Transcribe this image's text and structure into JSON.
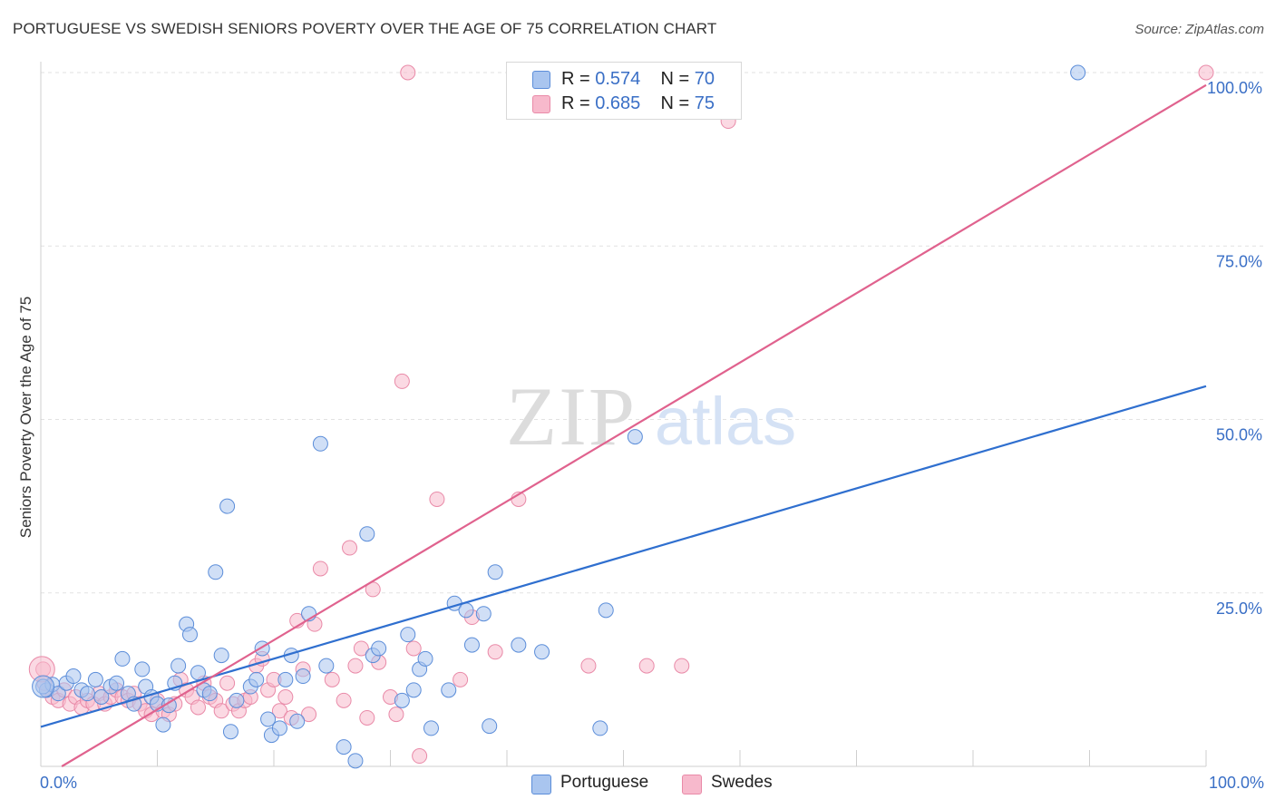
{
  "title": "PORTUGUESE VS SWEDISH SENIORS POVERTY OVER THE AGE OF 75 CORRELATION CHART",
  "source": "Source: ZipAtlas.com",
  "watermark": {
    "zip": "ZIP",
    "atlas": "atlas"
  },
  "colors": {
    "portuguese_fill": "#a9c5ef",
    "portuguese_stroke": "#5b8dd9",
    "portuguese_line": "#2f6fcf",
    "swedes_fill": "#f7b9cc",
    "swedes_stroke": "#e98aa8",
    "swedes_line": "#e0628e",
    "tick_label": "#3a6fc6",
    "grid": "#e2e2e2"
  },
  "legend": {
    "rows": [
      {
        "r_label": "R =",
        "r_value": "0.574",
        "n_label": "N =",
        "n_value": "70"
      },
      {
        "r_label": "R =",
        "r_value": "0.685",
        "n_label": "N =",
        "n_value": "75"
      }
    ]
  },
  "bottom_legend": [
    "Portuguese",
    "Swedes"
  ],
  "chart_data": {
    "type": "scatter",
    "title": "PORTUGUESE VS SWEDISH SENIORS POVERTY OVER THE AGE OF 75 CORRELATION CHART",
    "xlabel": "",
    "ylabel": "Seniors Poverty Over the Age of 75",
    "xlim": [
      0,
      100
    ],
    "ylim": [
      0,
      100
    ],
    "x_tick_labels": [
      "0.0%",
      "100.0%"
    ],
    "y_tick_labels": [
      {
        "value": 25,
        "label": "25.0%"
      },
      {
        "value": 50,
        "label": "50.0%"
      },
      {
        "value": 75,
        "label": "75.0%"
      },
      {
        "value": 100,
        "label": "100.0%"
      }
    ],
    "grid": true,
    "legend_position": "top-center",
    "series": [
      {
        "name": "Portuguese",
        "R": 0.574,
        "N": 70,
        "trend": {
          "x": [
            0,
            100
          ],
          "y": [
            5.7,
            54.8
          ]
        },
        "points": [
          [
            0.5,
            11
          ],
          [
            1,
            11.8
          ],
          [
            1.5,
            10.5
          ],
          [
            2.2,
            12
          ],
          [
            2.8,
            13
          ],
          [
            3.5,
            11
          ],
          [
            4,
            10.5
          ],
          [
            4.7,
            12.5
          ],
          [
            5.2,
            10
          ],
          [
            6,
            11.5
          ],
          [
            6.5,
            12
          ],
          [
            7,
            15.5
          ],
          [
            7.5,
            10.5
          ],
          [
            8,
            9
          ],
          [
            8.7,
            14
          ],
          [
            9,
            11.5
          ],
          [
            9.5,
            10
          ],
          [
            10,
            9
          ],
          [
            10.5,
            6
          ],
          [
            11,
            8.8
          ],
          [
            11.5,
            12
          ],
          [
            11.8,
            14.5
          ],
          [
            12.5,
            20.5
          ],
          [
            12.8,
            19
          ],
          [
            13.5,
            13.5
          ],
          [
            14,
            11
          ],
          [
            14.5,
            10.5
          ],
          [
            15,
            28
          ],
          [
            15.5,
            16
          ],
          [
            16,
            37.5
          ],
          [
            16.3,
            5
          ],
          [
            16.8,
            9.5
          ],
          [
            18,
            11.5
          ],
          [
            18.5,
            12.5
          ],
          [
            19,
            17
          ],
          [
            19.5,
            6.8
          ],
          [
            19.8,
            4.5
          ],
          [
            20.5,
            5.5
          ],
          [
            21,
            12.5
          ],
          [
            21.5,
            16
          ],
          [
            22,
            6.5
          ],
          [
            22.5,
            13
          ],
          [
            23,
            22
          ],
          [
            24,
            46.5
          ],
          [
            24.5,
            14.5
          ],
          [
            26,
            2.8
          ],
          [
            27,
            0.8
          ],
          [
            28,
            33.5
          ],
          [
            28.5,
            16
          ],
          [
            29,
            17
          ],
          [
            31,
            9.5
          ],
          [
            31.5,
            19
          ],
          [
            32,
            11
          ],
          [
            32.5,
            14
          ],
          [
            33,
            15.5
          ],
          [
            33.5,
            5.5
          ],
          [
            35,
            11
          ],
          [
            35.5,
            23.5
          ],
          [
            36.5,
            22.5
          ],
          [
            37,
            17.5
          ],
          [
            38,
            22
          ],
          [
            38.5,
            5.8
          ],
          [
            39,
            28
          ],
          [
            41,
            17.5
          ],
          [
            43,
            16.5
          ],
          [
            48,
            5.5
          ],
          [
            48.5,
            22.5
          ],
          [
            51,
            47.5
          ],
          [
            89,
            100
          ],
          [
            0.2,
            11.5
          ]
        ]
      },
      {
        "name": "Swedes",
        "R": 0.685,
        "N": 75,
        "trend": {
          "x": [
            0,
            100
          ],
          "y": [
            -1.8,
            98.2
          ]
        },
        "points": [
          [
            0.5,
            11
          ],
          [
            1,
            10
          ],
          [
            1.5,
            9.5
          ],
          [
            2,
            11
          ],
          [
            2.5,
            9
          ],
          [
            3,
            10
          ],
          [
            3.5,
            8.5
          ],
          [
            4,
            9.5
          ],
          [
            4.5,
            9
          ],
          [
            5,
            10.5
          ],
          [
            5.5,
            9
          ],
          [
            6,
            10
          ],
          [
            6.5,
            11
          ],
          [
            7,
            10
          ],
          [
            7.5,
            9.5
          ],
          [
            8,
            10.5
          ],
          [
            8.5,
            9
          ],
          [
            9,
            8
          ],
          [
            9.5,
            7.5
          ],
          [
            10,
            9.5
          ],
          [
            10.5,
            8
          ],
          [
            11,
            7.5
          ],
          [
            11.5,
            9
          ],
          [
            12,
            12.5
          ],
          [
            12.5,
            11
          ],
          [
            13,
            10
          ],
          [
            13.5,
            8.5
          ],
          [
            14,
            12
          ],
          [
            14.5,
            10
          ],
          [
            15,
            9.5
          ],
          [
            15.5,
            8
          ],
          [
            16,
            12
          ],
          [
            16.5,
            9
          ],
          [
            17,
            8
          ],
          [
            17.5,
            9.5
          ],
          [
            18,
            10
          ],
          [
            18.5,
            14.5
          ],
          [
            19,
            15.5
          ],
          [
            19.5,
            11
          ],
          [
            20,
            12.5
          ],
          [
            20.5,
            8
          ],
          [
            21,
            10
          ],
          [
            21.5,
            7
          ],
          [
            22,
            21
          ],
          [
            22.5,
            14
          ],
          [
            23,
            7.5
          ],
          [
            23.5,
            20.5
          ],
          [
            24,
            28.5
          ],
          [
            25,
            12.5
          ],
          [
            26,
            9.5
          ],
          [
            26.5,
            31.5
          ],
          [
            27,
            14.5
          ],
          [
            27.5,
            17
          ],
          [
            28,
            7
          ],
          [
            28.5,
            25.5
          ],
          [
            29,
            15
          ],
          [
            30,
            10
          ],
          [
            30.5,
            7.5
          ],
          [
            31,
            55.5
          ],
          [
            32,
            17
          ],
          [
            32.5,
            1.5
          ],
          [
            34,
            38.5
          ],
          [
            36,
            12.5
          ],
          [
            37,
            21.5
          ],
          [
            39,
            16.5
          ],
          [
            41,
            38.5
          ],
          [
            47,
            14.5
          ],
          [
            52,
            14.5
          ],
          [
            55,
            14.5
          ],
          [
            58,
            100
          ],
          [
            59,
            93
          ],
          [
            0.2,
            14
          ],
          [
            0.3,
            12
          ],
          [
            31.5,
            100
          ],
          [
            100,
            100
          ]
        ]
      }
    ]
  }
}
